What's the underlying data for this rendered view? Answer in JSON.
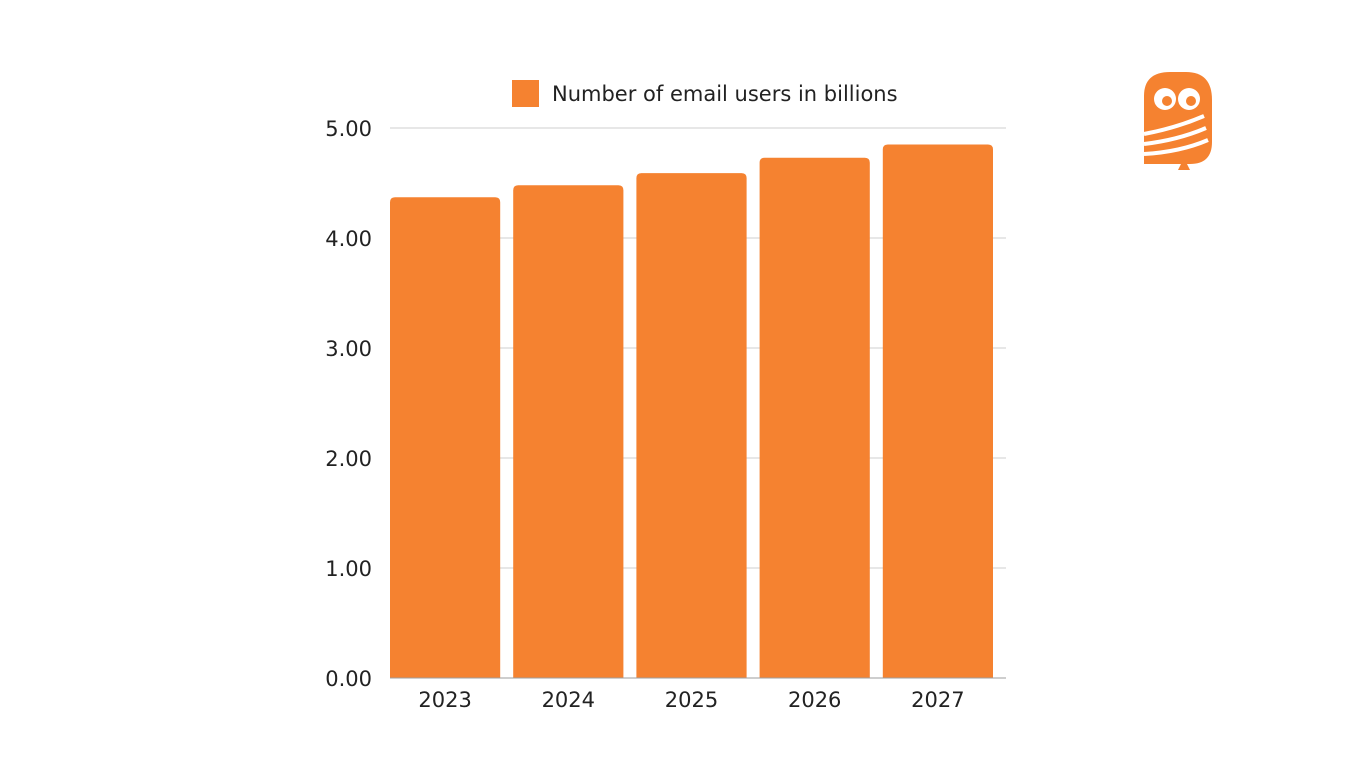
{
  "colors": {
    "bar": "#F58230",
    "grid": "#CFCFCF",
    "axis": "#9E9E9E",
    "logo": "#F58230"
  },
  "logo": {
    "icon": "owl-logo-icon"
  },
  "chart_data": {
    "type": "bar",
    "categories": [
      "2023",
      "2024",
      "2025",
      "2026",
      "2027"
    ],
    "series": [
      {
        "name": "Number of email users in billions",
        "values": [
          4.37,
          4.48,
          4.59,
          4.73,
          4.85
        ]
      }
    ],
    "yticks": [
      "0.00",
      "1.00",
      "2.00",
      "3.00",
      "4.00",
      "5.00"
    ],
    "ylim": [
      0,
      5
    ],
    "title": "",
    "xlabel": "",
    "ylabel": "",
    "grid": true,
    "legend": "top-center"
  }
}
